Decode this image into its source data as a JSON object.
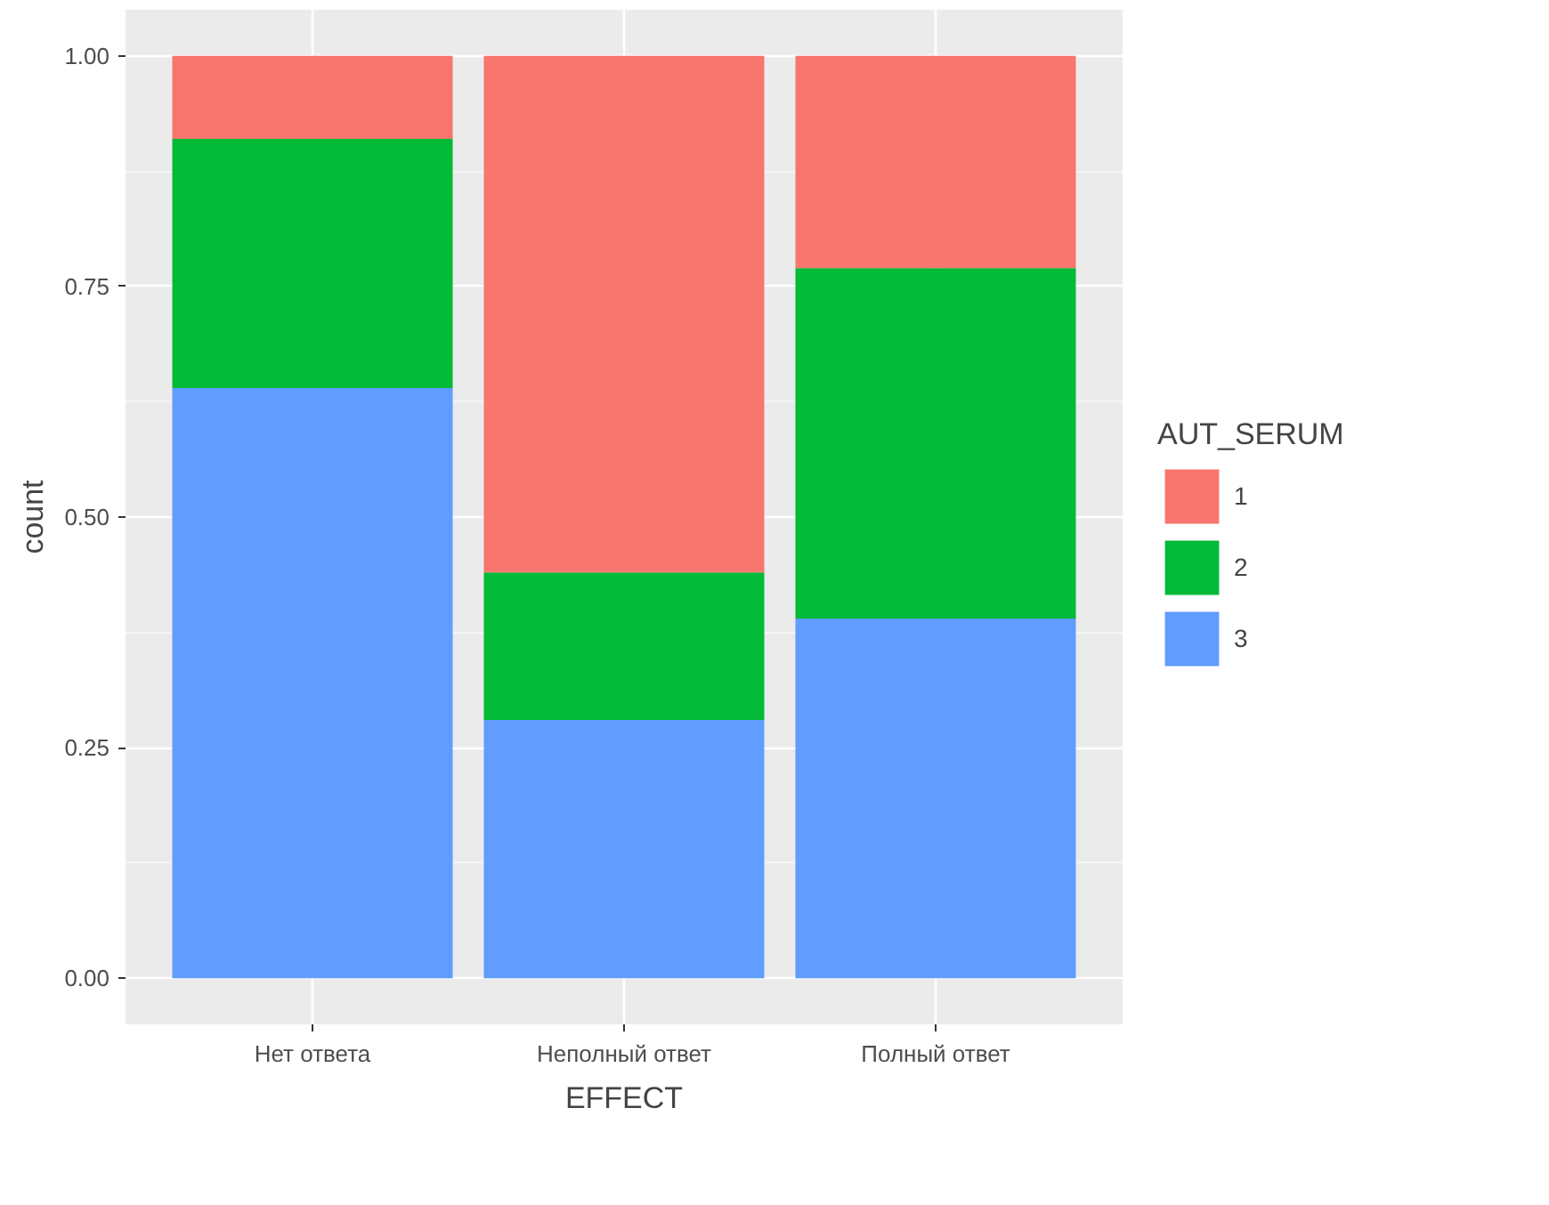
{
  "chart_data": {
    "type": "bar",
    "stacked": true,
    "xlabel": "EFFECT",
    "ylabel": "count",
    "legend_title": "AUT_SERUM",
    "categories": [
      "Нет ответа",
      "Неполный ответ",
      "Полный ответ"
    ],
    "series": [
      {
        "name": "3",
        "color": "#619cff",
        "values": [
          0.64,
          0.28,
          0.39
        ]
      },
      {
        "name": "2",
        "color": "#00ba38",
        "values": [
          0.27,
          0.16,
          0.38
        ]
      },
      {
        "name": "1",
        "color": "#f8766d",
        "values": [
          0.09,
          0.56,
          0.23
        ]
      }
    ],
    "ylim": [
      -0.05,
      1.05
    ],
    "yticks": [
      {
        "value": 0,
        "label": "0.00"
      },
      {
        "value": 0.25,
        "label": "0.25"
      },
      {
        "value": 0.5,
        "label": "0.50"
      },
      {
        "value": 0.75,
        "label": "0.75"
      },
      {
        "value": 1,
        "label": "1.00"
      }
    ],
    "grid": true,
    "legend": "right"
  }
}
